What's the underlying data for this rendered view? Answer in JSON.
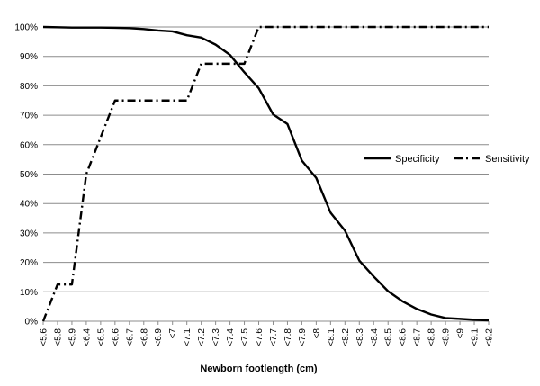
{
  "chart_data": {
    "type": "line",
    "title": "",
    "xlabel": "Newborn footlength (cm)",
    "ylabel": "",
    "categories": [
      "<5.6",
      "<5.8",
      "<5.9",
      "<6.4",
      "<6.5",
      "<6.6",
      "<6.7",
      "<6.8",
      "<6.9",
      "<7",
      "<7.1",
      "<7.2",
      "<7.3",
      "<7.4",
      "<7.5",
      "<7.6",
      "<7.7",
      "<7.8",
      "<7.9",
      "<8",
      "<8.1",
      "<8.2",
      "<8.3",
      "<8.4",
      "<8.5",
      "<8.6",
      "<8.7",
      "<8.8",
      "<8.9",
      "<9",
      "<9.1",
      "<9.2"
    ],
    "yticks": [
      "0%",
      "10%",
      "20%",
      "30%",
      "40%",
      "50%",
      "60%",
      "70%",
      "80%",
      "90%",
      "100%"
    ],
    "ylim": [
      0,
      100
    ],
    "grid": true,
    "legend_position": "right",
    "series": [
      {
        "name": "Specificity",
        "style": "solid",
        "color": "#000000",
        "values": [
          100,
          99.9,
          99.8,
          99.8,
          99.8,
          99.7,
          99.6,
          99.3,
          98.8,
          98.5,
          97.2,
          96.4,
          94,
          90.5,
          84.6,
          79.2,
          70.3,
          67,
          54.6,
          48.7,
          36.9,
          30.8,
          20.6,
          15.2,
          10.2,
          6.8,
          4.2,
          2.3,
          1.1,
          0.8,
          0.5,
          0.3
        ]
      },
      {
        "name": "Sensitivity",
        "style": "dash-dot",
        "color": "#000000",
        "values": [
          0,
          12.5,
          12.5,
          50,
          62.5,
          75,
          75,
          75,
          75,
          75,
          75,
          87.5,
          87.5,
          87.5,
          87.5,
          100,
          100,
          100,
          100,
          100,
          100,
          100,
          100,
          100,
          100,
          100,
          100,
          100,
          100,
          100,
          100,
          100
        ]
      }
    ]
  }
}
